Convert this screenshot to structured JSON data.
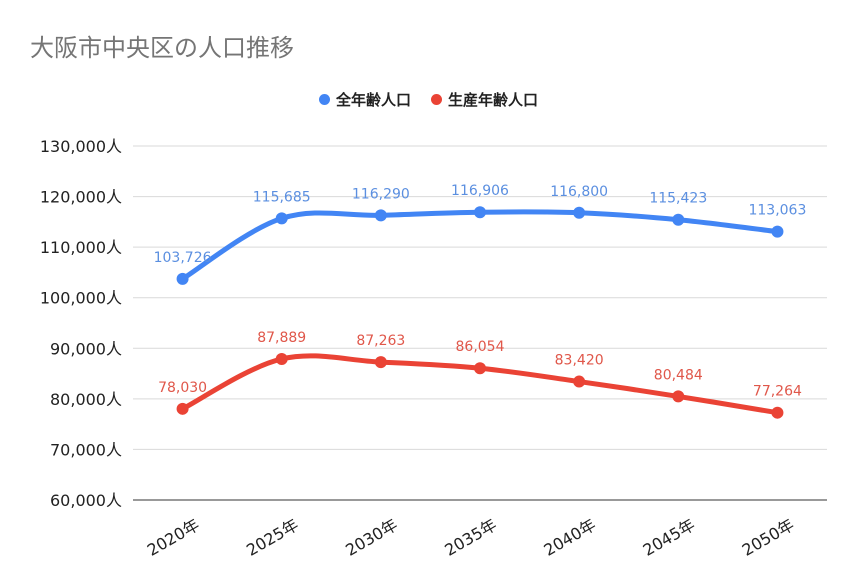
{
  "chart_data": {
    "type": "line",
    "title": "大阪市中央区の人口推移",
    "xlabel": "",
    "ylabel": "",
    "categories": [
      "2020年",
      "2025年",
      "2030年",
      "2035年",
      "2040年",
      "2045年",
      "2050年"
    ],
    "ylim": [
      60000,
      130000
    ],
    "yticks": [
      60000,
      70000,
      80000,
      90000,
      100000,
      110000,
      120000,
      130000
    ],
    "ytick_labels": [
      "60,000人",
      "70,000人",
      "80,000人",
      "90,000人",
      "100,000人",
      "110,000人",
      "120,000人",
      "130,000人"
    ],
    "grid": true,
    "legend_position": "top-center",
    "series": [
      {
        "name": "全年齢人口",
        "color": "#4285f4",
        "label_color": "#5b8fe0",
        "values": [
          103726,
          115685,
          116290,
          116906,
          116800,
          115423,
          113063
        ],
        "labels": [
          "103,726",
          "115,685",
          "116,290",
          "116,906",
          "116,800",
          "115,423",
          "113,063"
        ]
      },
      {
        "name": "生産年齢人口",
        "color": "#ea4335",
        "label_color": "#e0574a",
        "values": [
          78030,
          87889,
          87263,
          86054,
          83420,
          80484,
          77264
        ],
        "labels": [
          "78,030",
          "87,889",
          "87,263",
          "86,054",
          "83,420",
          "80,484",
          "77,264"
        ]
      }
    ]
  }
}
